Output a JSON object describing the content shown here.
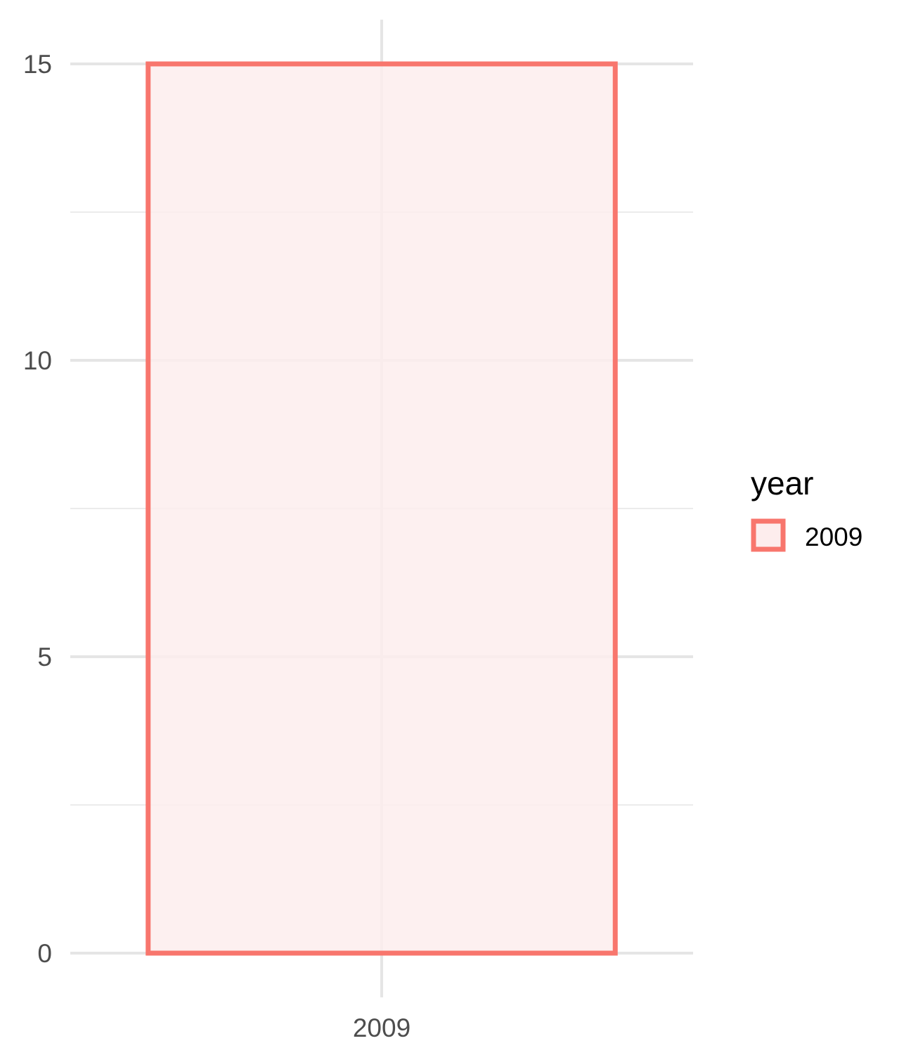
{
  "chart_data": {
    "type": "bar",
    "categories": [
      "2009"
    ],
    "values": [
      15
    ],
    "ylim": [
      0,
      15
    ],
    "yticks": [
      0,
      5,
      10,
      15
    ],
    "grid": true,
    "legend": {
      "title": "year",
      "entries": [
        "2009"
      ],
      "position": "right"
    },
    "series_color": "#F8766D",
    "fill_color": "#FDEDED"
  }
}
